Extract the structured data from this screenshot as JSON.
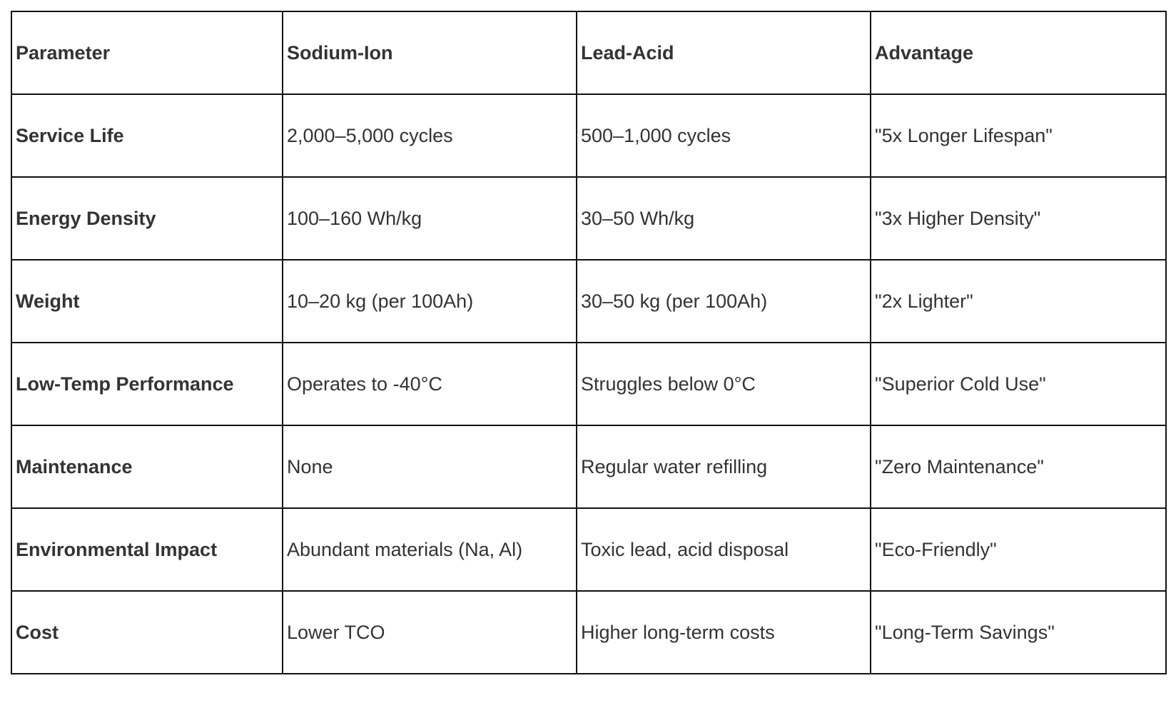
{
  "table": {
    "headers": [
      "Parameter",
      "Sodium-Ion",
      "Lead-Acid",
      "Advantage"
    ],
    "rows": [
      [
        "Service Life",
        "2,000–5,000 cycles",
        "500–1,000 cycles",
        "\"5x Longer Lifespan\""
      ],
      [
        "Energy Density",
        "100–160 Wh/kg",
        "30–50 Wh/kg",
        "\"3x Higher Density\""
      ],
      [
        "Weight",
        "10–20 kg (per 100Ah)",
        "30–50 kg (per 100Ah)",
        "\"2x Lighter\""
      ],
      [
        "Low-Temp Performance",
        "Operates to -40°C",
        "Struggles below 0°C",
        "\"Superior Cold Use\""
      ],
      [
        "Maintenance",
        "None",
        "Regular water refilling",
        "\"Zero Maintenance\""
      ],
      [
        "Environmental Impact",
        "Abundant materials (Na, Al)",
        "Toxic lead, acid disposal",
        "\"Eco-Friendly\""
      ],
      [
        "Cost",
        "Lower TCO",
        "Higher long-term costs",
        "\"Long-Term Savings\""
      ]
    ]
  }
}
